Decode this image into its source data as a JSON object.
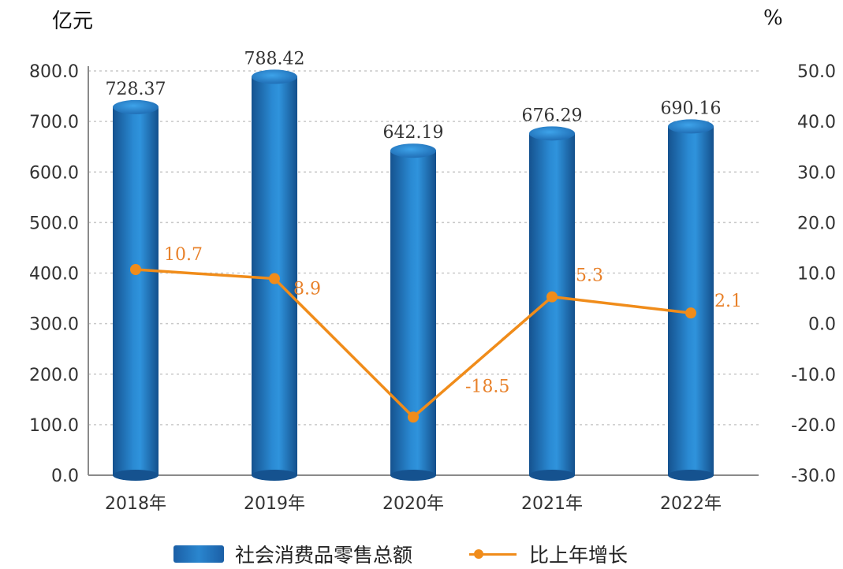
{
  "chart_data": {
    "type": "bar+line",
    "left_unit": "亿元",
    "right_unit": "%",
    "categories": [
      "2018年",
      "2019年",
      "2020年",
      "2021年",
      "2022年"
    ],
    "series": [
      {
        "name": "社会消费品零售总额",
        "type": "bar",
        "axis": "left",
        "values": [
          728.37,
          788.42,
          642.19,
          676.29,
          690.16
        ],
        "labels": [
          "728.37",
          "788.42",
          "642.19",
          "676.29",
          "690.16"
        ],
        "color": "#1f6fb8"
      },
      {
        "name": "比上年增长",
        "type": "line",
        "axis": "right",
        "values": [
          10.7,
          8.9,
          -18.5,
          5.3,
          2.1
        ],
        "labels": [
          "10.7",
          "8.9",
          "-18.5",
          "5.3",
          "2.1"
        ],
        "color": "#f08c1a"
      }
    ],
    "y_left": {
      "min": 0,
      "max": 800,
      "ticks": [
        "0.0",
        "100.0",
        "200.0",
        "300.0",
        "400.0",
        "500.0",
        "600.0",
        "700.0",
        "800.0"
      ]
    },
    "y_right": {
      "min": -30,
      "max": 50,
      "ticks": [
        "-30.0",
        "-20.0",
        "-10.0",
        "0.0",
        "10.0",
        "20.0",
        "30.0",
        "40.0",
        "50.0"
      ]
    },
    "grid": true,
    "legend_position": "bottom"
  },
  "legend": {
    "bar_label": "社会消费品零售总额",
    "line_label": "比上年增长"
  }
}
